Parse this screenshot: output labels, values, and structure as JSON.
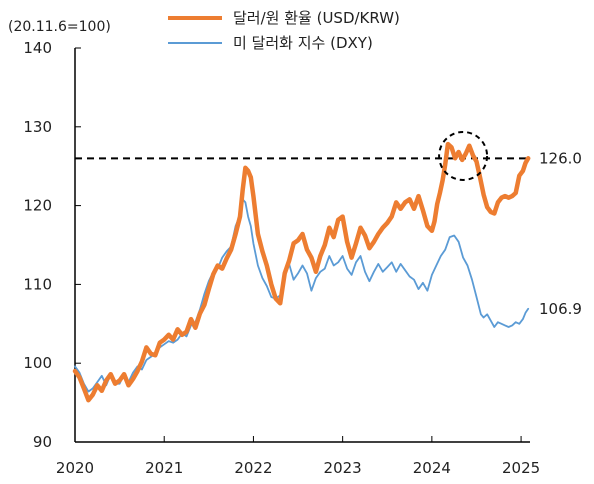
{
  "chart_data": {
    "type": "line",
    "unit_note": "(20.11.6=100)",
    "ylim": [
      90,
      140
    ],
    "y_ticks": [
      90,
      100,
      110,
      120,
      130,
      140
    ],
    "xlim": [
      2020,
      2025.1
    ],
    "x_ticks": [
      "2020",
      "2021",
      "2022",
      "2023",
      "2024",
      "2025"
    ],
    "reference_line": {
      "value": 126.0,
      "label": "126.0",
      "style": "dashed"
    },
    "highlight_circle": {
      "x": 2024.35,
      "y": 126.3
    },
    "legend_position": "top",
    "series": [
      {
        "name": "달러/원 환율 (USD/KRW)",
        "color": "#ED7D31",
        "end_label": "126.0",
        "points": [
          [
            2020.0,
            99.0
          ],
          [
            2020.05,
            98.2
          ],
          [
            2020.1,
            96.8
          ],
          [
            2020.15,
            95.3
          ],
          [
            2020.2,
            96.0
          ],
          [
            2020.25,
            97.2
          ],
          [
            2020.3,
            96.5
          ],
          [
            2020.35,
            97.8
          ],
          [
            2020.4,
            98.6
          ],
          [
            2020.45,
            97.4
          ],
          [
            2020.5,
            97.8
          ],
          [
            2020.55,
            98.6
          ],
          [
            2020.6,
            97.2
          ],
          [
            2020.65,
            98.0
          ],
          [
            2020.7,
            99.0
          ],
          [
            2020.75,
            100.2
          ],
          [
            2020.8,
            102.0
          ],
          [
            2020.85,
            101.2
          ],
          [
            2020.9,
            101.0
          ],
          [
            2020.95,
            102.6
          ],
          [
            2021.0,
            103.0
          ],
          [
            2021.05,
            103.6
          ],
          [
            2021.1,
            103.0
          ],
          [
            2021.15,
            104.3
          ],
          [
            2021.2,
            103.6
          ],
          [
            2021.25,
            104.0
          ],
          [
            2021.3,
            105.6
          ],
          [
            2021.35,
            104.5
          ],
          [
            2021.4,
            106.3
          ],
          [
            2021.45,
            107.4
          ],
          [
            2021.5,
            109.4
          ],
          [
            2021.55,
            111.3
          ],
          [
            2021.6,
            112.4
          ],
          [
            2021.65,
            112.0
          ],
          [
            2021.7,
            113.3
          ],
          [
            2021.75,
            114.4
          ],
          [
            2021.8,
            116.4
          ],
          [
            2021.85,
            118.6
          ],
          [
            2021.88,
            122.0
          ],
          [
            2021.91,
            124.8
          ],
          [
            2021.94,
            124.4
          ],
          [
            2021.97,
            123.6
          ],
          [
            2022.0,
            121.2
          ],
          [
            2022.05,
            116.4
          ],
          [
            2022.1,
            114.2
          ],
          [
            2022.15,
            112.4
          ],
          [
            2022.2,
            110.0
          ],
          [
            2022.25,
            108.2
          ],
          [
            2022.3,
            107.6
          ],
          [
            2022.35,
            111.4
          ],
          [
            2022.4,
            113.0
          ],
          [
            2022.45,
            115.2
          ],
          [
            2022.5,
            115.6
          ],
          [
            2022.55,
            116.4
          ],
          [
            2022.6,
            114.4
          ],
          [
            2022.65,
            113.4
          ],
          [
            2022.7,
            111.6
          ],
          [
            2022.75,
            113.6
          ],
          [
            2022.8,
            115.0
          ],
          [
            2022.85,
            117.2
          ],
          [
            2022.9,
            116.0
          ],
          [
            2022.95,
            118.2
          ],
          [
            2023.0,
            118.6
          ],
          [
            2023.05,
            115.4
          ],
          [
            2023.1,
            113.4
          ],
          [
            2023.15,
            115.2
          ],
          [
            2023.2,
            117.2
          ],
          [
            2023.25,
            116.2
          ],
          [
            2023.3,
            114.6
          ],
          [
            2023.35,
            115.4
          ],
          [
            2023.4,
            116.4
          ],
          [
            2023.45,
            117.2
          ],
          [
            2023.5,
            117.8
          ],
          [
            2023.55,
            118.6
          ],
          [
            2023.6,
            120.4
          ],
          [
            2023.65,
            119.6
          ],
          [
            2023.7,
            120.4
          ],
          [
            2023.75,
            120.8
          ],
          [
            2023.8,
            119.6
          ],
          [
            2023.85,
            121.2
          ],
          [
            2023.9,
            119.4
          ],
          [
            2023.95,
            117.4
          ],
          [
            2024.0,
            116.8
          ],
          [
            2024.03,
            118.0
          ],
          [
            2024.06,
            120.2
          ],
          [
            2024.09,
            121.6
          ],
          [
            2024.12,
            123.2
          ],
          [
            2024.15,
            125.2
          ],
          [
            2024.18,
            127.8
          ],
          [
            2024.22,
            127.4
          ],
          [
            2024.26,
            126.0
          ],
          [
            2024.3,
            126.8
          ],
          [
            2024.34,
            125.8
          ],
          [
            2024.38,
            126.6
          ],
          [
            2024.42,
            127.6
          ],
          [
            2024.46,
            126.4
          ],
          [
            2024.5,
            125.6
          ],
          [
            2024.54,
            123.6
          ],
          [
            2024.58,
            121.4
          ],
          [
            2024.62,
            119.8
          ],
          [
            2024.66,
            119.2
          ],
          [
            2024.7,
            119.0
          ],
          [
            2024.74,
            120.4
          ],
          [
            2024.78,
            121.0
          ],
          [
            2024.82,
            121.2
          ],
          [
            2024.86,
            121.0
          ],
          [
            2024.9,
            121.2
          ],
          [
            2024.94,
            121.6
          ],
          [
            2024.98,
            123.8
          ],
          [
            2025.02,
            124.4
          ],
          [
            2025.05,
            125.4
          ],
          [
            2025.08,
            126.0
          ]
        ]
      },
      {
        "name": "미 달러화 지수 (DXY)",
        "color": "#5B9BD5",
        "end_label": "106.9",
        "points": [
          [
            2020.0,
            99.6
          ],
          [
            2020.05,
            98.8
          ],
          [
            2020.1,
            97.4
          ],
          [
            2020.15,
            96.4
          ],
          [
            2020.2,
            96.8
          ],
          [
            2020.25,
            97.6
          ],
          [
            2020.3,
            98.4
          ],
          [
            2020.35,
            97.2
          ],
          [
            2020.4,
            98.6
          ],
          [
            2020.45,
            97.4
          ],
          [
            2020.5,
            97.4
          ],
          [
            2020.55,
            98.6
          ],
          [
            2020.6,
            97.6
          ],
          [
            2020.65,
            98.8
          ],
          [
            2020.7,
            99.6
          ],
          [
            2020.75,
            99.2
          ],
          [
            2020.8,
            100.4
          ],
          [
            2020.85,
            100.8
          ],
          [
            2020.9,
            101.2
          ],
          [
            2020.95,
            102.0
          ],
          [
            2021.0,
            102.4
          ],
          [
            2021.05,
            102.8
          ],
          [
            2021.1,
            102.6
          ],
          [
            2021.15,
            103.0
          ],
          [
            2021.2,
            103.8
          ],
          [
            2021.25,
            103.4
          ],
          [
            2021.3,
            104.8
          ],
          [
            2021.35,
            105.2
          ],
          [
            2021.4,
            106.8
          ],
          [
            2021.45,
            108.8
          ],
          [
            2021.5,
            110.4
          ],
          [
            2021.55,
            111.6
          ],
          [
            2021.6,
            112.0
          ],
          [
            2021.65,
            113.4
          ],
          [
            2021.7,
            114.2
          ],
          [
            2021.75,
            114.8
          ],
          [
            2021.8,
            117.4
          ],
          [
            2021.85,
            118.8
          ],
          [
            2021.88,
            120.8
          ],
          [
            2021.91,
            120.4
          ],
          [
            2021.94,
            118.6
          ],
          [
            2021.97,
            117.4
          ],
          [
            2022.0,
            115.2
          ],
          [
            2022.05,
            112.4
          ],
          [
            2022.1,
            110.8
          ],
          [
            2022.15,
            109.8
          ],
          [
            2022.2,
            108.4
          ],
          [
            2022.25,
            108.2
          ],
          [
            2022.3,
            108.6
          ],
          [
            2022.35,
            111.2
          ],
          [
            2022.4,
            112.6
          ],
          [
            2022.45,
            110.6
          ],
          [
            2022.5,
            111.4
          ],
          [
            2022.55,
            112.4
          ],
          [
            2022.6,
            111.4
          ],
          [
            2022.65,
            109.2
          ],
          [
            2022.7,
            110.8
          ],
          [
            2022.75,
            111.6
          ],
          [
            2022.8,
            112.0
          ],
          [
            2022.85,
            113.6
          ],
          [
            2022.9,
            112.4
          ],
          [
            2022.95,
            112.8
          ],
          [
            2023.0,
            113.6
          ],
          [
            2023.05,
            112.0
          ],
          [
            2023.1,
            111.2
          ],
          [
            2023.15,
            112.8
          ],
          [
            2023.2,
            113.6
          ],
          [
            2023.25,
            111.6
          ],
          [
            2023.3,
            110.4
          ],
          [
            2023.35,
            111.6
          ],
          [
            2023.4,
            112.6
          ],
          [
            2023.45,
            111.6
          ],
          [
            2023.5,
            112.2
          ],
          [
            2023.55,
            112.8
          ],
          [
            2023.6,
            111.6
          ],
          [
            2023.65,
            112.6
          ],
          [
            2023.7,
            111.8
          ],
          [
            2023.75,
            111.0
          ],
          [
            2023.8,
            110.6
          ],
          [
            2023.85,
            109.4
          ],
          [
            2023.9,
            110.2
          ],
          [
            2023.95,
            109.2
          ],
          [
            2024.0,
            111.2
          ],
          [
            2024.05,
            112.4
          ],
          [
            2024.1,
            113.6
          ],
          [
            2024.15,
            114.4
          ],
          [
            2024.2,
            116.0
          ],
          [
            2024.25,
            116.2
          ],
          [
            2024.3,
            115.4
          ],
          [
            2024.35,
            113.4
          ],
          [
            2024.4,
            112.4
          ],
          [
            2024.45,
            110.6
          ],
          [
            2024.5,
            108.4
          ],
          [
            2024.55,
            106.2
          ],
          [
            2024.58,
            105.8
          ],
          [
            2024.62,
            106.2
          ],
          [
            2024.66,
            105.4
          ],
          [
            2024.7,
            104.6
          ],
          [
            2024.74,
            105.2
          ],
          [
            2024.78,
            105.0
          ],
          [
            2024.82,
            104.8
          ],
          [
            2024.86,
            104.6
          ],
          [
            2024.9,
            104.8
          ],
          [
            2024.94,
            105.2
          ],
          [
            2024.98,
            105.0
          ],
          [
            2025.02,
            105.6
          ],
          [
            2025.05,
            106.4
          ],
          [
            2025.08,
            106.9
          ]
        ]
      }
    ]
  }
}
